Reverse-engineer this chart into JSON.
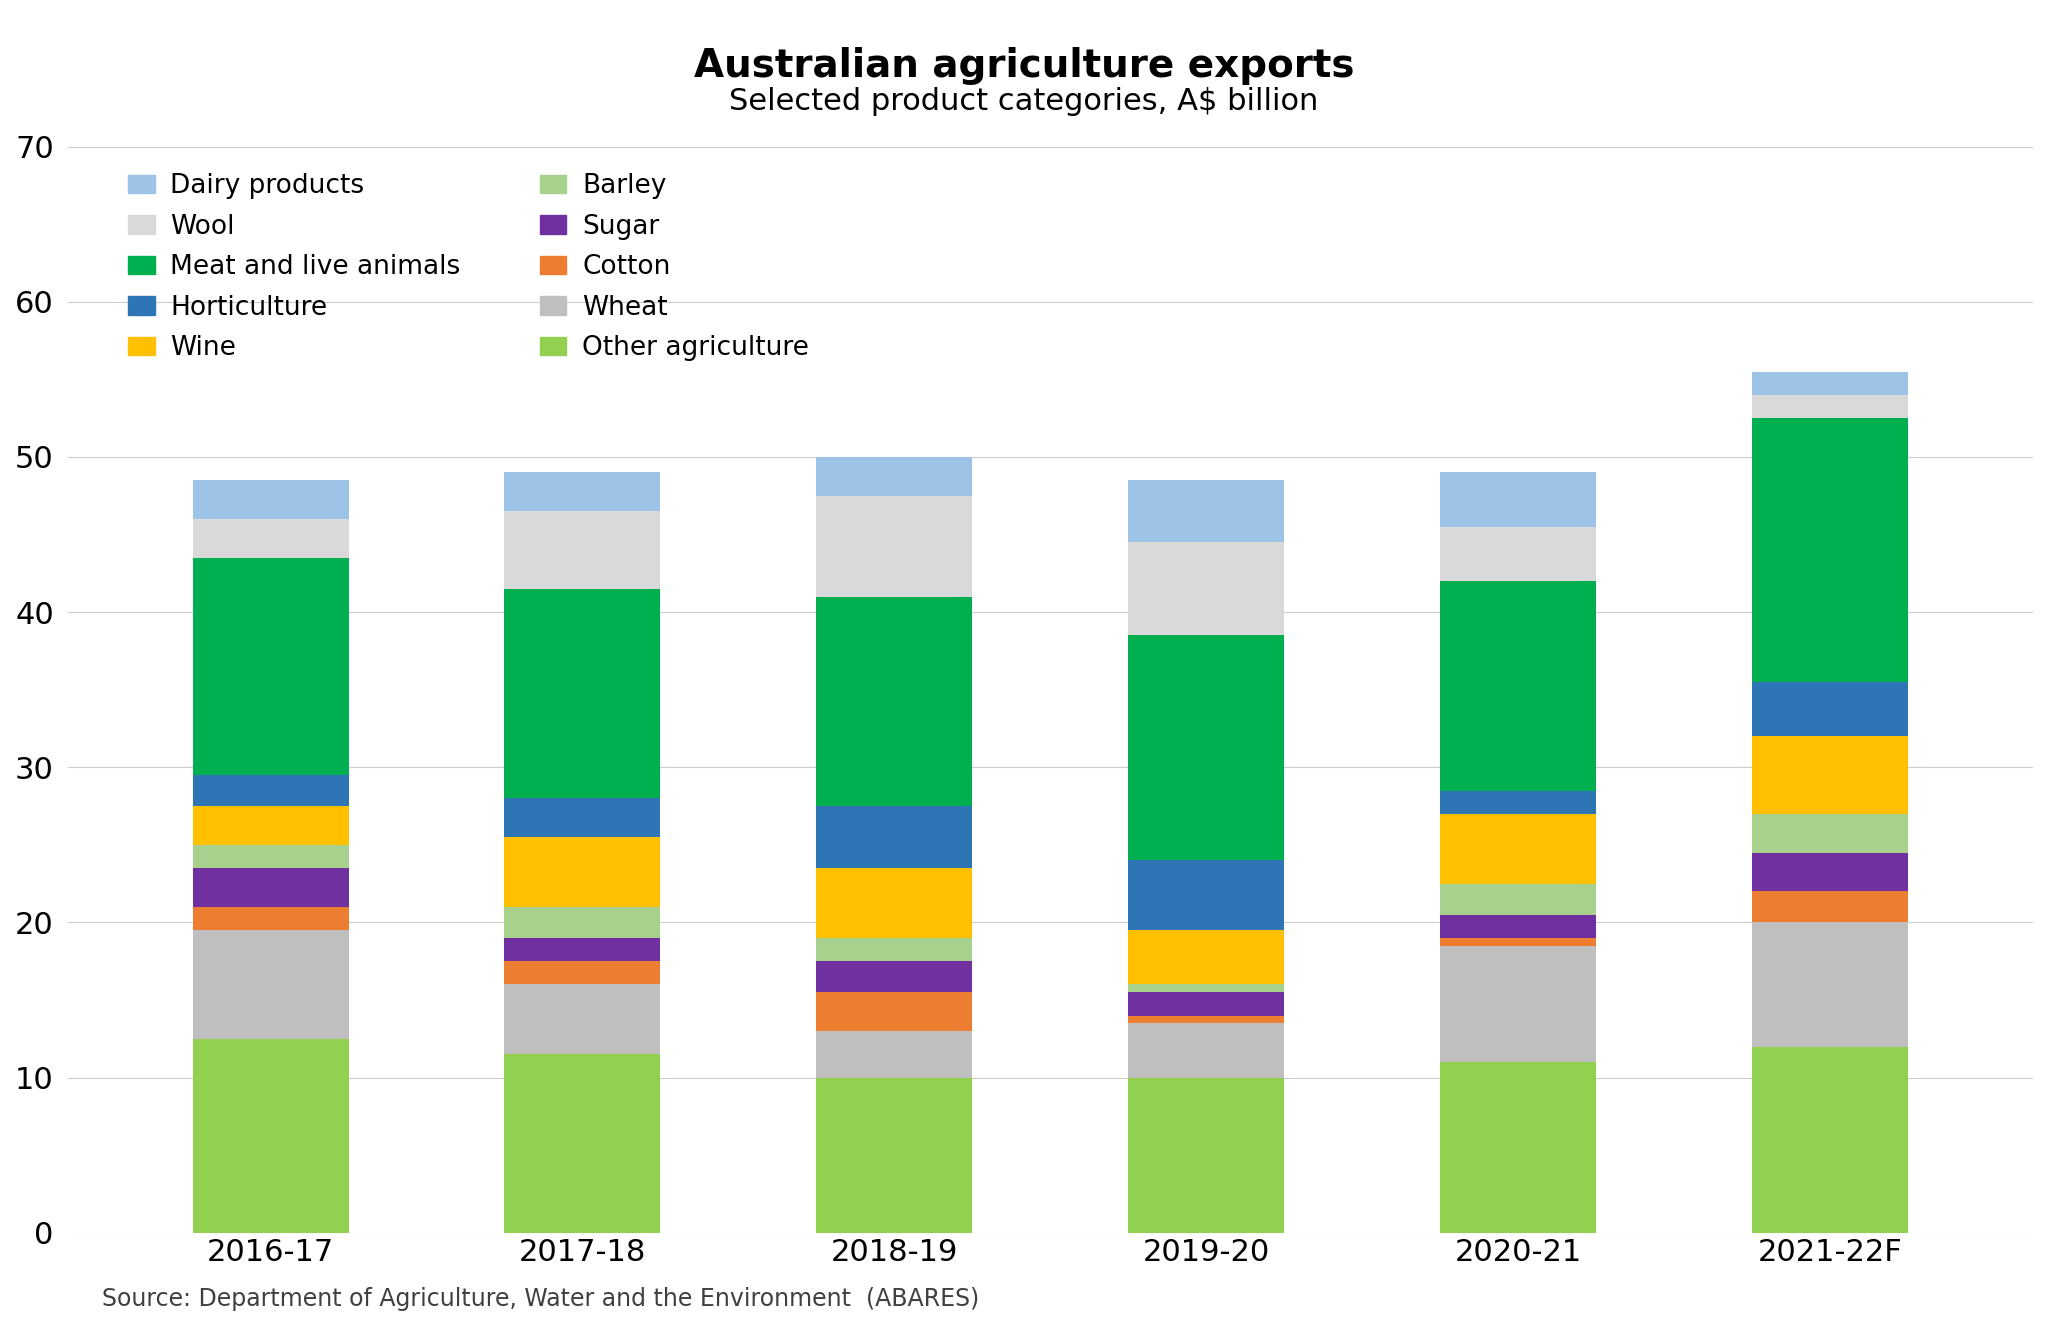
{
  "categories": [
    "2016-17",
    "2017-18",
    "2018-19",
    "2019-20",
    "2020-21",
    "2021-22F"
  ],
  "title": "Australian agriculture exports",
  "subtitle": "Selected product categories, A$ billion",
  "source": "Source: Department of Agriculture, Water and the Environment  (ABARES)",
  "ylim": [
    0,
    70
  ],
  "yticks": [
    0,
    10,
    20,
    30,
    40,
    50,
    60,
    70
  ],
  "series": [
    {
      "label": "Other agriculture",
      "color": "#92D050",
      "values": [
        12.5,
        11.5,
        10.0,
        10.0,
        11.0,
        12.0
      ]
    },
    {
      "label": "Wheat",
      "color": "#BFBFBF",
      "values": [
        7.0,
        4.5,
        3.0,
        3.5,
        7.5,
        8.0
      ]
    },
    {
      "label": "Cotton",
      "color": "#ED7D31",
      "values": [
        1.5,
        1.5,
        2.5,
        0.5,
        0.5,
        2.0
      ]
    },
    {
      "label": "Sugar",
      "color": "#7030A0",
      "values": [
        2.5,
        1.5,
        2.0,
        1.5,
        1.5,
        2.5
      ]
    },
    {
      "label": "Barley",
      "color": "#A9D18E",
      "values": [
        1.5,
        2.0,
        1.5,
        0.5,
        2.0,
        2.5
      ]
    },
    {
      "label": "Wine",
      "color": "#FFC000",
      "values": [
        2.5,
        4.5,
        4.5,
        3.5,
        4.5,
        5.0
      ]
    },
    {
      "label": "Horticulture",
      "color": "#2E75B6",
      "values": [
        2.0,
        2.5,
        4.0,
        4.5,
        1.5,
        3.5
      ]
    },
    {
      "label": "Meat and live animals",
      "color": "#00B050",
      "values": [
        14.0,
        13.5,
        13.5,
        14.5,
        13.5,
        17.0
      ]
    },
    {
      "label": "Wool",
      "color": "#D9D9D9",
      "values": [
        2.5,
        5.0,
        6.5,
        6.0,
        3.5,
        1.5
      ]
    },
    {
      "label": "Dairy products",
      "color": "#9DC3E6",
      "values": [
        2.5,
        2.5,
        2.5,
        4.0,
        3.5,
        1.5
      ]
    }
  ],
  "legend_order": [
    "Dairy products",
    "Wool",
    "Meat and live animals",
    "Horticulture",
    "Wine",
    "Barley",
    "Sugar",
    "Cotton",
    "Wheat",
    "Other agriculture"
  ],
  "background_color": "#FFFFFF",
  "bar_width": 0.5
}
